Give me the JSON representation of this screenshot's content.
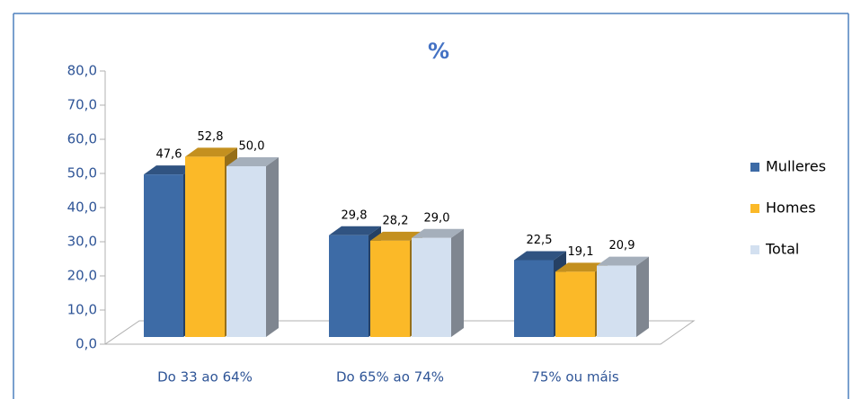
{
  "chart_data": {
    "type": "bar3d",
    "title": "%",
    "categories": [
      "Do 33 ao 64%",
      "Do 65% ao 74%",
      "75% ou máis"
    ],
    "series": [
      {
        "name": "Mulleres",
        "color": "#3d6ba6",
        "values": [
          47.6,
          29.8,
          22.5
        ],
        "value_labels": [
          "47,6",
          "29,8",
          "22,5"
        ]
      },
      {
        "name": "Homes",
        "color": "#fbb928",
        "values": [
          52.8,
          28.2,
          19.1
        ],
        "value_labels": [
          "52,8",
          "28,2",
          "19,1"
        ]
      },
      {
        "name": "Total",
        "color": "#d3e0f0",
        "values": [
          50.0,
          29.0,
          20.9
        ],
        "value_labels": [
          "50,0",
          "29,0",
          "20,9"
        ]
      }
    ],
    "ylim": [
      0,
      80
    ],
    "yticks": [
      {
        "value": 0,
        "label": "0,0"
      },
      {
        "value": 10,
        "label": "10,0"
      },
      {
        "value": 20,
        "label": "20,0"
      },
      {
        "value": 30,
        "label": "30,0"
      },
      {
        "value": 40,
        "label": "40,0"
      },
      {
        "value": 50,
        "label": "50,0"
      },
      {
        "value": 60,
        "label": "60,0"
      },
      {
        "value": 70,
        "label": "70,0"
      },
      {
        "value": 80,
        "label": "80,0"
      }
    ],
    "legend": "right"
  }
}
